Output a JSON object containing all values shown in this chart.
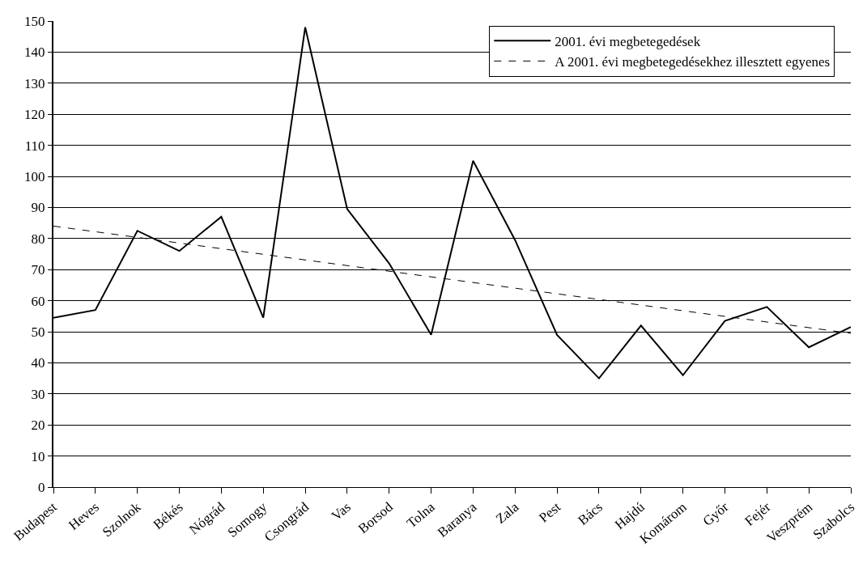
{
  "chart_data": {
    "type": "line",
    "categories": [
      "Budapest",
      "Heves",
      "Szolnok",
      "Békés",
      "Nógrád",
      "Somogy",
      "Csongrád",
      "Vas",
      "Borsod",
      "Tolna",
      "Baranya",
      "Zala",
      "Pest",
      "Bács",
      "Hajdú",
      "Komárom",
      "Győr",
      "Fejér",
      "Veszprém",
      "Szabolcs"
    ],
    "series": [
      {
        "name": "2001. évi megbetegedések",
        "color": "#000000",
        "line_style": "solid",
        "values": [
          54.5,
          57,
          82.5,
          76,
          87,
          54.5,
          148,
          89.5,
          72,
          49,
          105,
          79.5,
          49,
          35,
          52,
          36,
          53.5,
          58,
          45,
          51.5
        ]
      },
      {
        "name": "A 2001. évi megbetegedésekhez illesztett egyenes",
        "color": "#000000",
        "line_style": "dashed",
        "x": [
          "Budapest",
          "Szabolcs"
        ],
        "values": [
          84,
          49.5
        ]
      }
    ],
    "ylim": [
      0,
      150
    ],
    "yticks": [
      0,
      10,
      20,
      30,
      40,
      50,
      60,
      70,
      80,
      90,
      100,
      110,
      120,
      130,
      140,
      150
    ],
    "grid": "y",
    "legend": "top right",
    "marker": "none"
  }
}
